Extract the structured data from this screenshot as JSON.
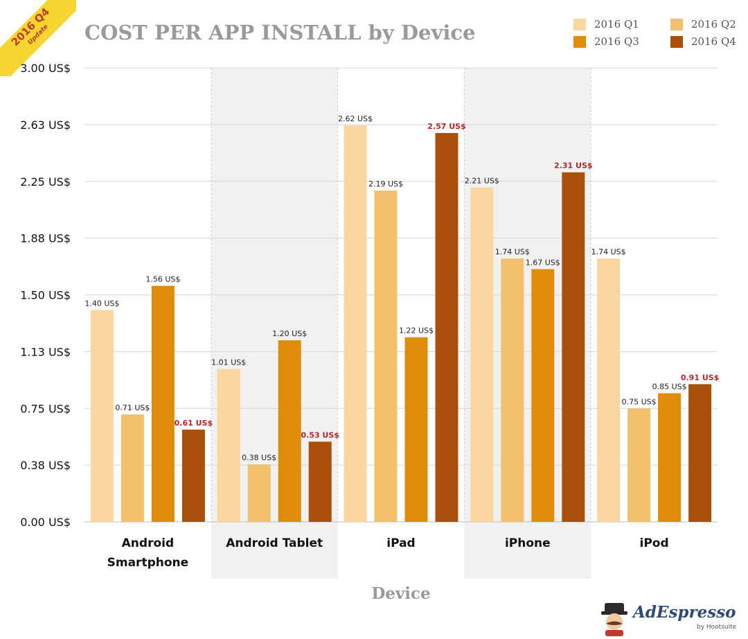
{
  "badge": {
    "line1": "2016 Q4",
    "line2": "Update"
  },
  "logo": {
    "text": "AdEspresso",
    "sub": "by Hootsuite"
  },
  "chart_data": {
    "type": "bar",
    "title": "COST PER APP INSTALL by Device",
    "xlabel": "Device",
    "ylabel": "",
    "ylim": [
      0,
      3.0
    ],
    "yticks": [
      "0.00 US$",
      "0.38 US$",
      "0.75 US$",
      "1.13 US$",
      "1.50 US$",
      "1.88 US$",
      "2.25 US$",
      "2.63 US$",
      "3.00 US$"
    ],
    "categories": [
      [
        "Android",
        "Smartphone"
      ],
      [
        "Android Tablet"
      ],
      [
        "iPad"
      ],
      [
        "iPhone"
      ],
      [
        "iPod"
      ]
    ],
    "series": [
      {
        "name": "2016 Q1",
        "color": "#fad7a0",
        "values": [
          1.4,
          1.01,
          2.62,
          2.21,
          1.74
        ],
        "labels": [
          "1.40 US$",
          "1.01 US$",
          "2.62 US$",
          "2.21 US$",
          "1.74 US$"
        ]
      },
      {
        "name": "2016 Q2",
        "color": "#f2c16e",
        "values": [
          0.71,
          0.38,
          2.19,
          1.74,
          0.75
        ],
        "labels": [
          "0.71 US$",
          "0.38 US$",
          "2.19 US$",
          "1.74 US$",
          "0.75 US$"
        ]
      },
      {
        "name": "2016 Q3",
        "color": "#de8c0a",
        "values": [
          1.56,
          1.2,
          1.22,
          1.67,
          0.85
        ],
        "labels": [
          "1.56 US$",
          "1.20 US$",
          "1.22 US$",
          "1.67 US$",
          "0.85 US$"
        ]
      },
      {
        "name": "2016 Q4",
        "color": "#a8500c",
        "values": [
          0.61,
          0.53,
          2.57,
          2.31,
          0.91
        ],
        "labels": [
          "0.61 US$",
          "0.53 US$",
          "2.57 US$",
          "2.31 US$",
          "0.91 US$"
        ],
        "highlight": true
      }
    ],
    "shaded_categories": [
      1,
      3
    ],
    "legend_position": "top-right",
    "grid": true
  }
}
